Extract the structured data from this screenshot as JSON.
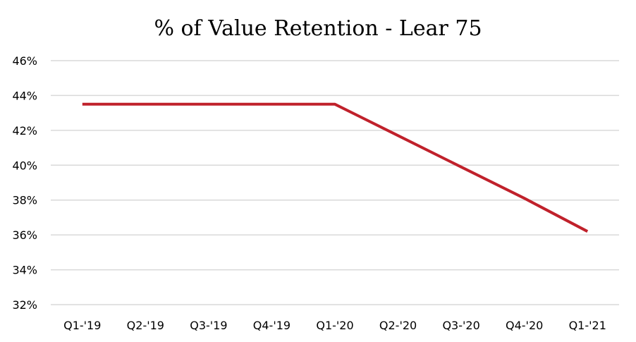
{
  "chart_data": {
    "type": "line",
    "title": "% of Value Retention - Lear 75",
    "xlabel": "",
    "ylabel": "",
    "categories": [
      "Q1-'19",
      "Q2-'19",
      "Q3-'19",
      "Q4-'19",
      "Q1-'20",
      "Q2-'20",
      "Q3-'20",
      "Q4-'20",
      "Q1-'21"
    ],
    "y_ticks": [
      "46%",
      "44%",
      "42%",
      "40%",
      "38%",
      "36%",
      "34%",
      "32%"
    ],
    "ylim": [
      32,
      46
    ],
    "grid": true,
    "legend": "none",
    "series": [
      {
        "values": [
          43.5,
          43.5,
          43.5,
          43.5,
          43.5,
          41.7,
          39.9,
          38.1,
          36.2
        ],
        "color": "#c0212b"
      }
    ]
  }
}
